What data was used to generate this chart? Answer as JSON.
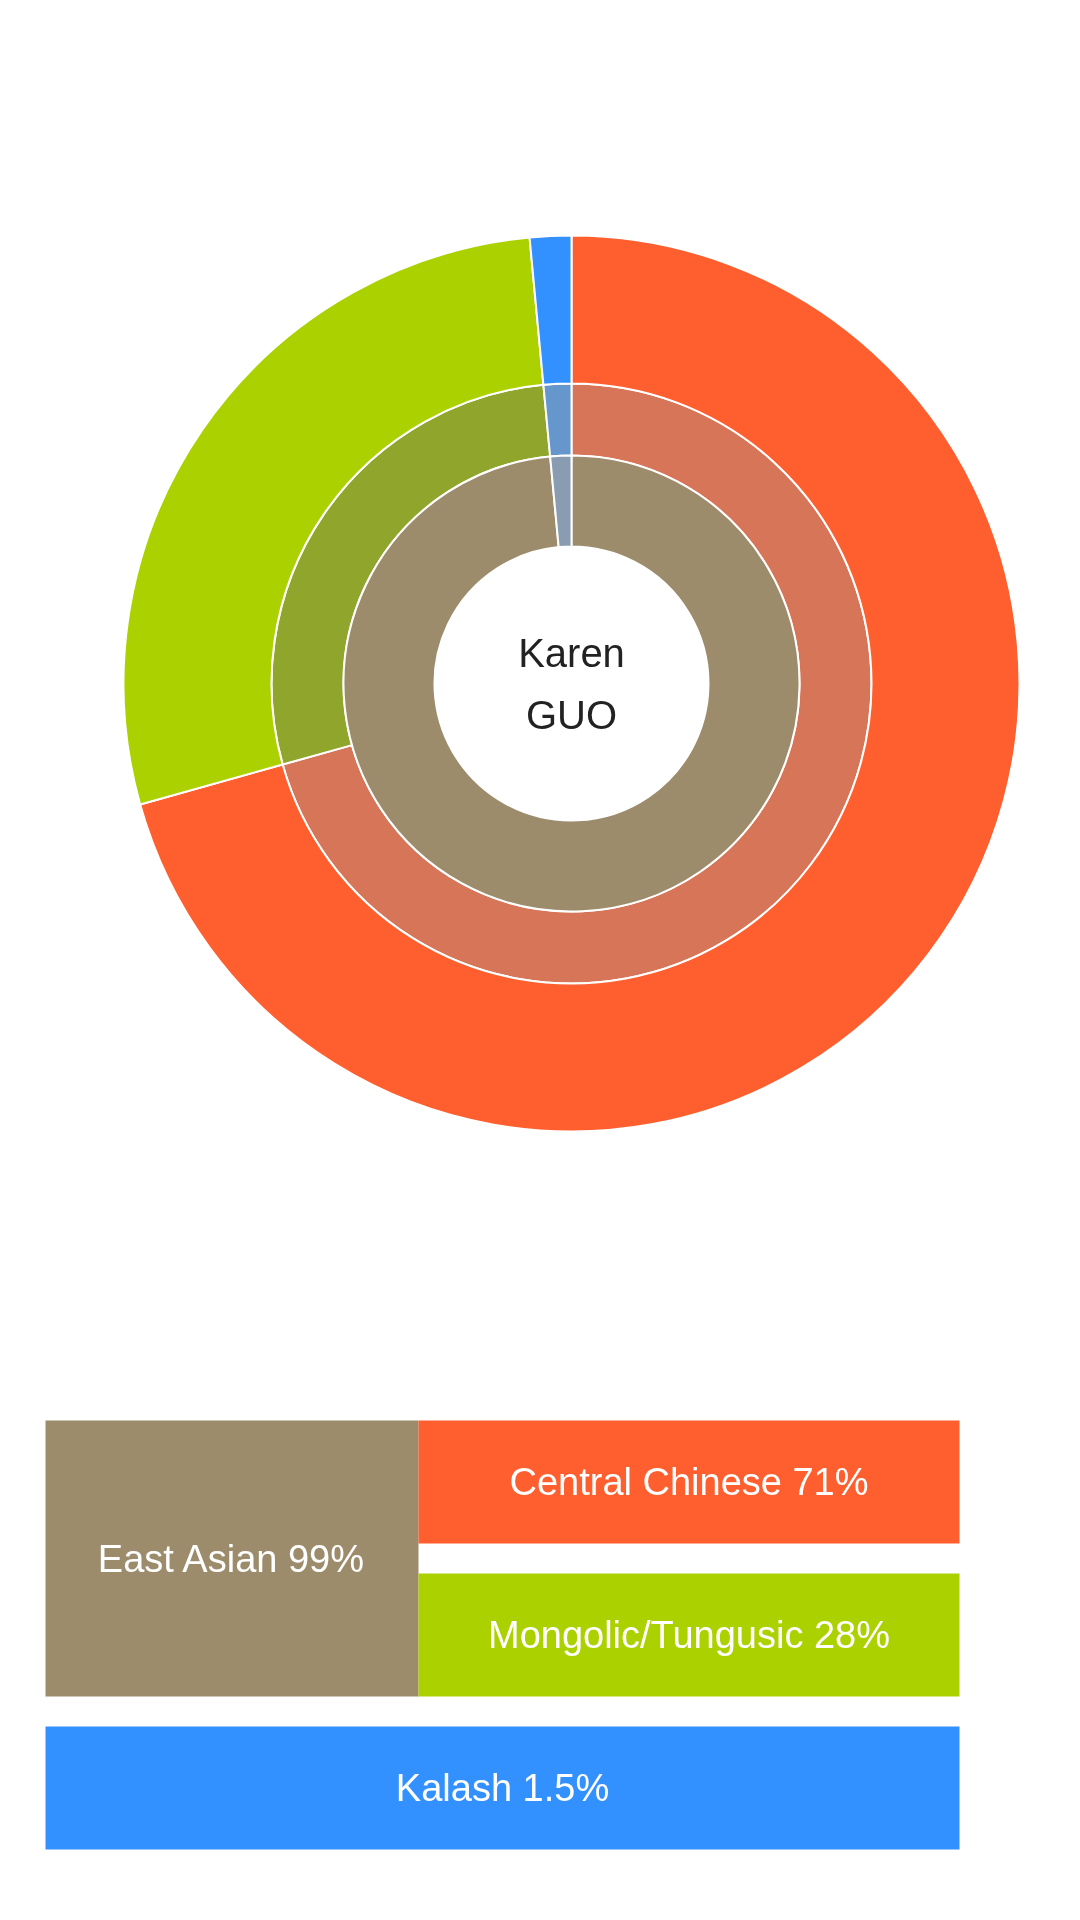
{
  "chart_data": {
    "type": "donut",
    "categories": [
      "Central Chinese",
      "Mongolic/Tungusic",
      "Kalash",
      "East Asian",
      null
    ],
    "value_labels": [
      "71%",
      "28%",
      "1.5%",
      "99%",
      null
    ],
    "annotations": [
      "Karen GUO"
    ],
    "series": [
      {
        "values": [
          null,
          null,
          null,
          99,
          1.5
        ],
        "colors": [
          null,
          null,
          null,
          "#9c8c6c",
          "#8a9cb2"
        ]
      },
      {
        "values": [
          71,
          28,
          1.5,
          null,
          null
        ],
        "colors": [
          "#ff5f2e",
          "#acd100",
          "#3391ff",
          null,
          null
        ]
      },
      {
        "values": [
          71,
          28,
          1.5,
          null,
          null
        ],
        "colors": [
          "#d67557",
          "#8fa52c",
          "#6596cc",
          null,
          null
        ]
      }
    ]
  }
}
